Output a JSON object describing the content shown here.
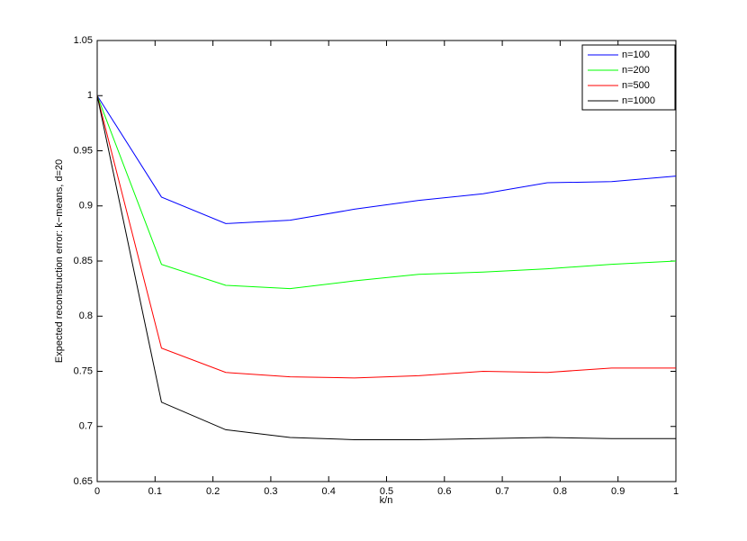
{
  "chart_data": {
    "type": "line",
    "xlabel": "k/n",
    "ylabel": "Expected reconstruction error: k−means, d=20",
    "x": [
      0,
      0.1111,
      0.2222,
      0.3333,
      0.4444,
      0.5556,
      0.6667,
      0.7778,
      0.8889,
      1
    ],
    "series": [
      {
        "name": "n=100",
        "color": "#0000ff",
        "values": [
          1.0,
          0.908,
          0.884,
          0.887,
          0.897,
          0.905,
          0.911,
          0.921,
          0.922,
          0.927
        ]
      },
      {
        "name": "n=200",
        "color": "#00ff00",
        "values": [
          1.0,
          0.847,
          0.828,
          0.825,
          0.832,
          0.838,
          0.84,
          0.843,
          0.847,
          0.85
        ]
      },
      {
        "name": "n=500",
        "color": "#ff0000",
        "values": [
          1.0,
          0.771,
          0.749,
          0.745,
          0.744,
          0.746,
          0.75,
          0.749,
          0.753,
          0.753
        ]
      },
      {
        "name": "n=1000",
        "color": "#000000",
        "values": [
          1.0,
          0.722,
          0.697,
          0.69,
          0.688,
          0.688,
          0.689,
          0.69,
          0.689,
          0.689
        ]
      }
    ],
    "xlim": [
      0,
      1
    ],
    "xticks": [
      0,
      0.1,
      0.2,
      0.3,
      0.4,
      0.5,
      0.6,
      0.7,
      0.8,
      0.9,
      1
    ],
    "ylim": [
      0.65,
      1.05
    ],
    "yticks": [
      0.65,
      0.7,
      0.75,
      0.8,
      0.85,
      0.9,
      0.95,
      1,
      1.05
    ],
    "grid": false,
    "legend": "upper right"
  }
}
